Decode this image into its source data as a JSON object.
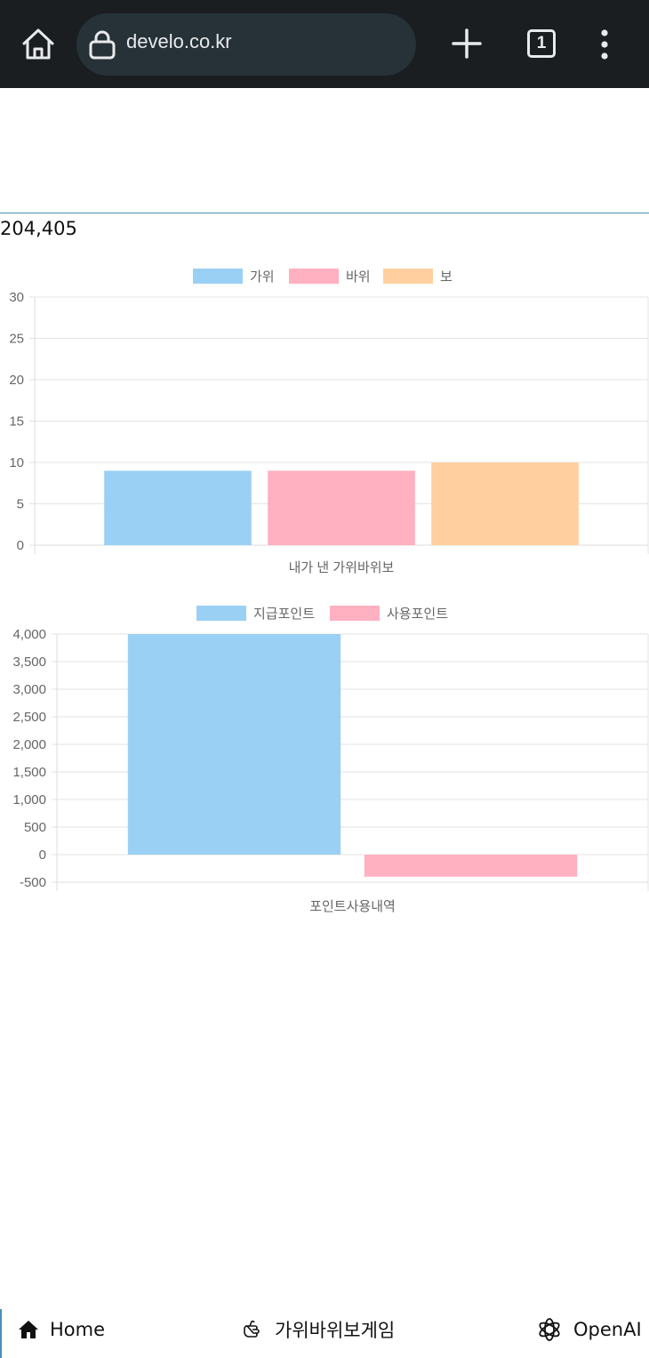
{
  "browser": {
    "url": "develo.co.kr",
    "tab_count": "1",
    "icons": [
      "home-icon",
      "lock-icon",
      "plus-icon",
      "tabs-icon",
      "more-vert-icon"
    ]
  },
  "page": {
    "count_value": "204,405"
  },
  "chart_data": [
    {
      "type": "bar",
      "categories": [
        "내가 낸 가위바위보"
      ],
      "xlabel": "내가 낸 가위바위보",
      "series": [
        {
          "name": "가위",
          "values": [
            9
          ],
          "color": "#9bd0f5"
        },
        {
          "name": "바위",
          "values": [
            9
          ],
          "color": "#ffb0c1"
        },
        {
          "name": "보",
          "values": [
            10
          ],
          "color": "#ffcf9f"
        }
      ],
      "ylim": [
        0,
        30
      ],
      "yticks": [
        "30",
        "25",
        "20",
        "15",
        "10",
        "5",
        "0"
      ],
      "legend": "top-center",
      "grid": true
    },
    {
      "type": "bar",
      "categories": [
        "포인트사용내역"
      ],
      "xlabel": "포인트사용내역",
      "series": [
        {
          "name": "지급포인트",
          "values": [
            4000
          ],
          "color": "#9bd0f5"
        },
        {
          "name": "사용포인트",
          "values": [
            -400
          ],
          "color": "#ffb0c1"
        }
      ],
      "ylim": [
        -500,
        4000
      ],
      "yticks": [
        "4,000",
        "3,500",
        "3,000",
        "2,500",
        "2,000",
        "1,500",
        "1,000",
        "500",
        "0",
        "-500"
      ],
      "legend": "top-center",
      "grid": true
    }
  ],
  "bottom_nav": {
    "items": [
      {
        "label": "Home",
        "icon": "home-icon"
      },
      {
        "label": "가위바위보게임",
        "icon": "hand-icon"
      },
      {
        "label": "OpenAI",
        "icon": "openai-icon"
      }
    ]
  }
}
